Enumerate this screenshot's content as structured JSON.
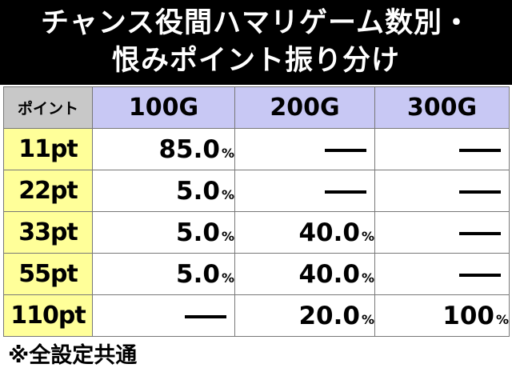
{
  "title": {
    "line1": "チャンス役間ハマリゲーム数別・",
    "line2": "恨みポイント振り分け"
  },
  "table": {
    "corner_label": "ポイント",
    "columns": [
      "100G",
      "200G",
      "300G"
    ],
    "percent_sign": "%",
    "dash_label": "—",
    "rows": [
      {
        "label": "11pt",
        "cells": [
          "85.0",
          "—",
          "—"
        ]
      },
      {
        "label": "22pt",
        "cells": [
          "5.0",
          "—",
          "—"
        ]
      },
      {
        "label": "33pt",
        "cells": [
          "5.0",
          "40.0",
          "—"
        ]
      },
      {
        "label": "55pt",
        "cells": [
          "5.0",
          "40.0",
          "—"
        ]
      },
      {
        "label": "110pt",
        "cells": [
          "—",
          "20.0",
          "100"
        ]
      }
    ]
  },
  "footnote": "※全設定共通"
}
